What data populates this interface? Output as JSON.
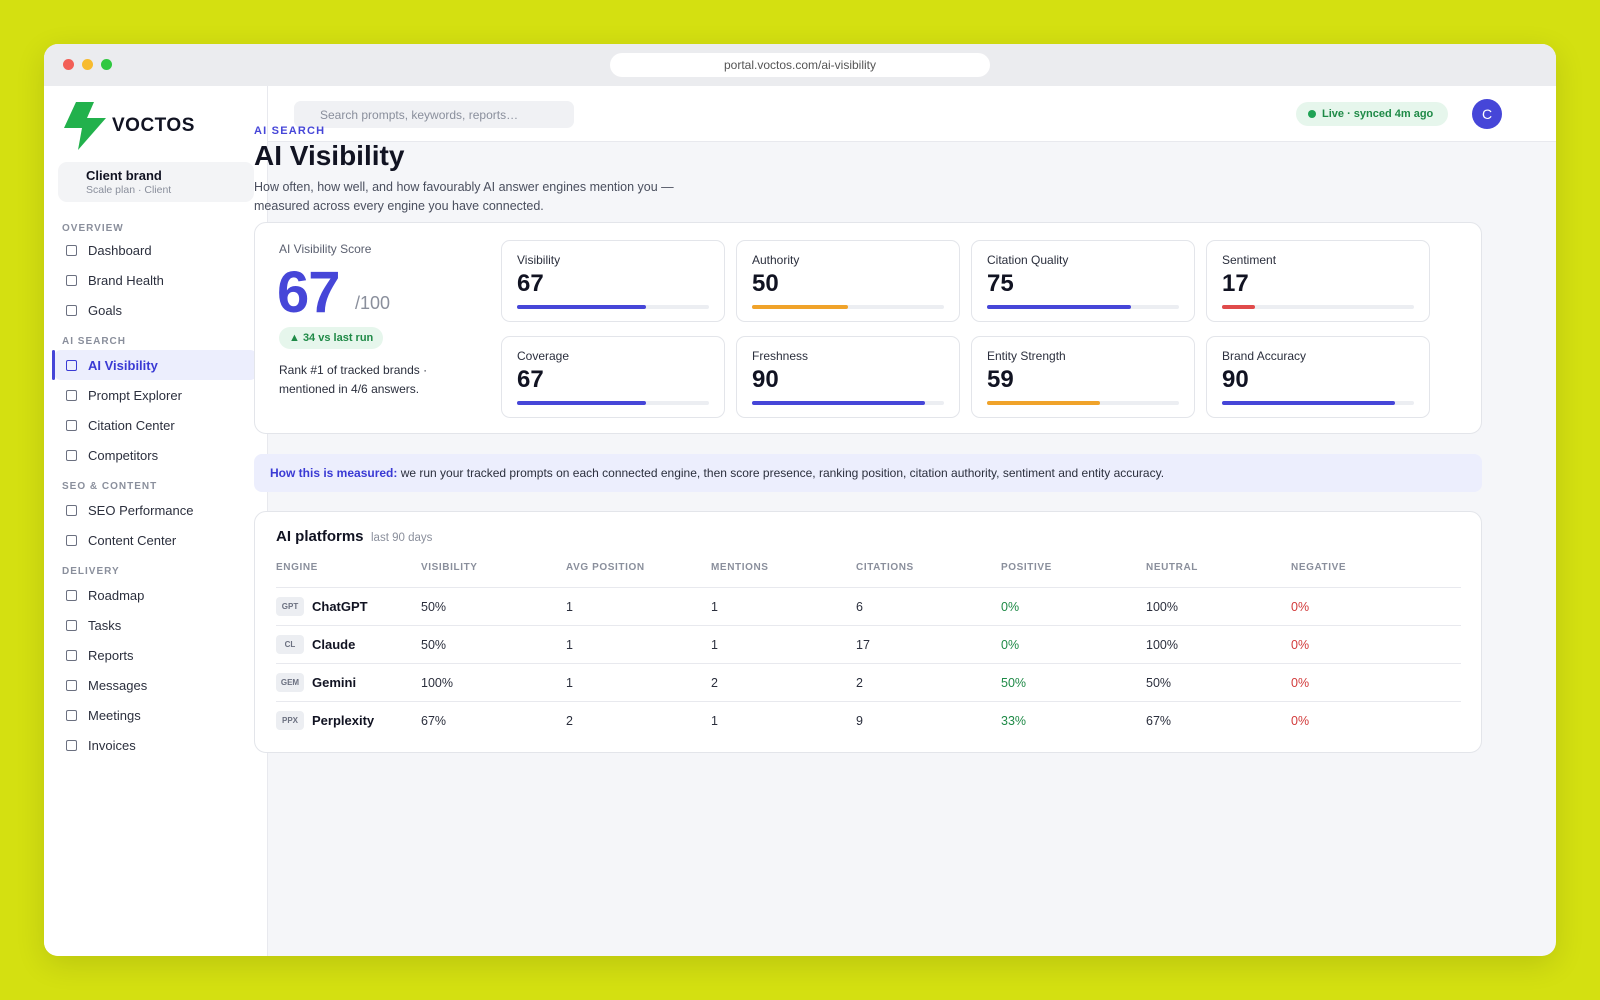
{
  "browser": {
    "url": "portal.voctos.com/ai-visibility"
  },
  "brand": {
    "logo_text": "VOCTOS",
    "client_name": "Client brand",
    "client_plan": "Scale plan · Client"
  },
  "nav": {
    "sections": [
      {
        "label": "OVERVIEW",
        "items": [
          "Dashboard",
          "Brand Health",
          "Goals"
        ]
      },
      {
        "label": "AI SEARCH",
        "items": [
          "AI Visibility",
          "Prompt Explorer",
          "Citation Center",
          "Competitors"
        ]
      },
      {
        "label": "SEO & CONTENT",
        "items": [
          "SEO Performance",
          "Content Center"
        ]
      },
      {
        "label": "DELIVERY",
        "items": [
          "Roadmap",
          "Tasks",
          "Reports",
          "Messages",
          "Meetings",
          "Invoices"
        ]
      }
    ],
    "active": "AI Visibility"
  },
  "topbar": {
    "search_placeholder": "Search prompts, keywords, reports…",
    "status": "Live · synced 4m ago",
    "avatar_initial": "C"
  },
  "page": {
    "eyebrow": "AI SEARCH",
    "title": "AI Visibility",
    "description": "How often, how well, and how favourably AI answer engines mention you — measured across every engine you have connected."
  },
  "score": {
    "label": "AI Visibility Score",
    "value": "67",
    "max": "/100",
    "delta": "▲ 34 vs last run",
    "rank_text": "Rank #1 of tracked brands · mentioned in 4/6 answers."
  },
  "metrics": [
    {
      "label": "Visibility",
      "value": "67",
      "level": 67,
      "color": "#4646d8"
    },
    {
      "label": "Authority",
      "value": "50",
      "level": 50,
      "color": "#f0a32a"
    },
    {
      "label": "Citation Quality",
      "value": "75",
      "level": 75,
      "color": "#4646d8"
    },
    {
      "label": "Sentiment",
      "value": "17",
      "level": 17,
      "color": "#e04b4b"
    },
    {
      "label": "Coverage",
      "value": "67",
      "level": 67,
      "color": "#4646d8"
    },
    {
      "label": "Freshness",
      "value": "90",
      "level": 90,
      "color": "#4646d8"
    },
    {
      "label": "Entity Strength",
      "value": "59",
      "level": 59,
      "color": "#f0a32a"
    },
    {
      "label": "Brand Accuracy",
      "value": "90",
      "level": 90,
      "color": "#4646d8"
    }
  ],
  "info": {
    "lead": "How this is measured:",
    "text": " we run your tracked prompts on each connected engine, then score presence, ranking position, citation authority, sentiment and entity accuracy."
  },
  "platforms": {
    "title": "AI platforms",
    "subtitle": "last 90 days",
    "columns": [
      "ENGINE",
      "VISIBILITY",
      "AVG POSITION",
      "MENTIONS",
      "CITATIONS",
      "POSITIVE",
      "NEUTRAL",
      "NEGATIVE"
    ],
    "rows": [
      {
        "badge": "GPT",
        "engine": "ChatGPT",
        "visibility": "50%",
        "avg_position": "1",
        "mentions": "1",
        "citations": "6",
        "positive": "0%",
        "neutral": "100%",
        "negative": "0%"
      },
      {
        "badge": "CL",
        "engine": "Claude",
        "visibility": "50%",
        "avg_position": "1",
        "mentions": "1",
        "citations": "17",
        "positive": "0%",
        "neutral": "100%",
        "negative": "0%"
      },
      {
        "badge": "GEM",
        "engine": "Gemini",
        "visibility": "100%",
        "avg_position": "1",
        "mentions": "2",
        "citations": "2",
        "positive": "50%",
        "neutral": "50%",
        "negative": "0%"
      },
      {
        "badge": "PPX",
        "engine": "Perplexity",
        "visibility": "67%",
        "avg_position": "2",
        "mentions": "1",
        "citations": "9",
        "positive": "33%",
        "neutral": "67%",
        "negative": "0%"
      }
    ]
  },
  "colors": {
    "accent": "#4646d8",
    "positive": "#1f8a47",
    "negative": "#d23b3b",
    "background": "#d4e011",
    "logo": "#22b14c"
  }
}
